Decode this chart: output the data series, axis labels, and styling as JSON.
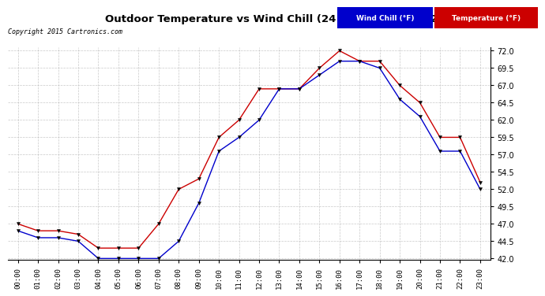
{
  "title": "Outdoor Temperature vs Wind Chill (24 Hours)  20150521",
  "copyright": "Copyright 2015 Cartronics.com",
  "hours": [
    "00:00",
    "01:00",
    "02:00",
    "03:00",
    "04:00",
    "05:00",
    "06:00",
    "07:00",
    "08:00",
    "09:00",
    "10:00",
    "11:00",
    "12:00",
    "13:00",
    "14:00",
    "15:00",
    "16:00",
    "17:00",
    "18:00",
    "19:00",
    "20:00",
    "21:00",
    "22:00",
    "23:00"
  ],
  "temperature": [
    47.0,
    46.0,
    46.0,
    45.5,
    43.5,
    43.5,
    43.5,
    47.0,
    52.0,
    53.5,
    59.5,
    62.0,
    66.5,
    66.5,
    66.5,
    69.5,
    72.0,
    70.5,
    70.5,
    67.0,
    64.5,
    59.5,
    59.5,
    53.0
  ],
  "wind_chill": [
    46.0,
    45.0,
    45.0,
    44.5,
    42.0,
    42.0,
    42.0,
    42.0,
    44.5,
    50.0,
    57.5,
    59.5,
    62.0,
    66.5,
    66.5,
    68.5,
    70.5,
    70.5,
    69.5,
    65.0,
    62.5,
    57.5,
    57.5,
    52.0
  ],
  "temp_color": "#cc0000",
  "wind_color": "#0000cc",
  "ylim_min": 42.0,
  "ylim_max": 72.0,
  "yticks": [
    42.0,
    44.5,
    47.0,
    49.5,
    52.0,
    54.5,
    57.0,
    59.5,
    62.0,
    64.5,
    67.0,
    69.5,
    72.0
  ],
  "bg_color": "#ffffff",
  "grid_color": "#bbbbbb",
  "legend_wind_bg": "#0000cc",
  "legend_temp_bg": "#cc0000",
  "legend_wind_label": "Wind Chill (°F)",
  "legend_temp_label": "Temperature (°F)"
}
